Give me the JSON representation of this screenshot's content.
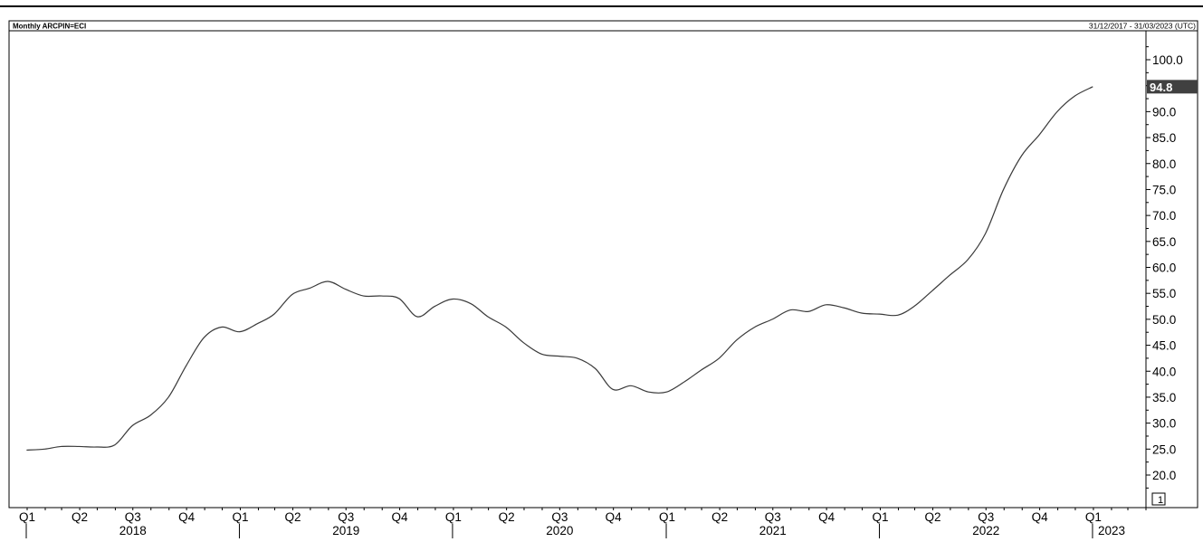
{
  "header": {
    "title": "Monthly ARCPIN=ECI",
    "date_range": "31/12/2017 - 31/03/2023 (UTC)"
  },
  "colors": {
    "line": "#3a3a3a",
    "axis": "#000000",
    "last_value_badge_bg": "#404040",
    "last_value_badge_text": "#ffffff"
  },
  "chart_data": {
    "type": "line",
    "title": "Monthly ARCPIN=ECI",
    "y_axis_position": "right",
    "ylim": [
      17.5,
      102.5
    ],
    "y_ticks": [
      20.0,
      25.0,
      30.0,
      35.0,
      40.0,
      45.0,
      50.0,
      55.0,
      60.0,
      65.0,
      70.0,
      75.0,
      80.0,
      85.0,
      90.0,
      95.0,
      100.0
    ],
    "y_tick_labels": [
      "20.0",
      "25.0",
      "30.0",
      "35.0",
      "40.0",
      "45.0",
      "50.0",
      "55.0",
      "60.0",
      "65.0",
      "70.0",
      "75.0",
      "80.0",
      "85.0",
      "90.0",
      "",
      "100.0"
    ],
    "last_value_label": "94.8",
    "scale_badge": "1",
    "grid": false,
    "x_ticks": [
      {
        "label": "Q1",
        "date": "2018-01-01"
      },
      {
        "label": "Q2",
        "date": "2018-04-01"
      },
      {
        "label": "Q3",
        "date": "2018-07-01"
      },
      {
        "label": "Q4",
        "date": "2018-10-01"
      },
      {
        "label": "Q1",
        "date": "2019-01-01"
      },
      {
        "label": "Q2",
        "date": "2019-04-01"
      },
      {
        "label": "Q3",
        "date": "2019-07-01"
      },
      {
        "label": "Q4",
        "date": "2019-10-01"
      },
      {
        "label": "Q1",
        "date": "2020-01-01"
      },
      {
        "label": "Q2",
        "date": "2020-04-01"
      },
      {
        "label": "Q3",
        "date": "2020-07-01"
      },
      {
        "label": "Q4",
        "date": "2020-10-01"
      },
      {
        "label": "Q1",
        "date": "2021-01-01"
      },
      {
        "label": "Q2",
        "date": "2021-04-01"
      },
      {
        "label": "Q3",
        "date": "2021-07-01"
      },
      {
        "label": "Q4",
        "date": "2021-10-01"
      },
      {
        "label": "Q1",
        "date": "2022-01-01"
      },
      {
        "label": "Q2",
        "date": "2022-04-01"
      },
      {
        "label": "Q3",
        "date": "2022-07-01"
      },
      {
        "label": "Q4",
        "date": "2022-10-01"
      },
      {
        "label": "Q1",
        "date": "2023-01-01"
      }
    ],
    "year_labels": [
      {
        "label": "2018",
        "date": "2018-07-01"
      },
      {
        "label": "2019",
        "date": "2019-07-01"
      },
      {
        "label": "2020",
        "date": "2020-07-01"
      },
      {
        "label": "2021",
        "date": "2021-07-01"
      },
      {
        "label": "2022",
        "date": "2022-07-01"
      },
      {
        "label": "2023",
        "date": "2023-01-01"
      }
    ],
    "year_boundaries": [
      "2018-01-01",
      "2019-01-01",
      "2020-01-01",
      "2021-01-01",
      "2022-01-01",
      "2023-01-01"
    ],
    "x_range": [
      "2017-12-01",
      "2023-04-01"
    ],
    "series": [
      {
        "x": [
          "2017-12-31",
          "2018-01-31",
          "2018-02-28",
          "2018-03-31",
          "2018-04-30",
          "2018-05-31",
          "2018-06-30",
          "2018-07-31",
          "2018-08-31",
          "2018-09-30",
          "2018-10-31",
          "2018-11-30",
          "2018-12-31",
          "2019-01-31",
          "2019-02-28",
          "2019-03-31",
          "2019-04-30",
          "2019-05-31",
          "2019-06-30",
          "2019-07-31",
          "2019-08-31",
          "2019-09-30",
          "2019-10-31",
          "2019-11-30",
          "2019-12-31",
          "2020-01-31",
          "2020-02-29",
          "2020-03-31",
          "2020-04-30",
          "2020-05-31",
          "2020-06-30",
          "2020-07-31",
          "2020-08-31",
          "2020-09-30",
          "2020-10-31",
          "2020-11-30",
          "2020-12-31",
          "2021-01-31",
          "2021-02-28",
          "2021-03-31",
          "2021-04-30",
          "2021-05-31",
          "2021-06-30",
          "2021-07-31",
          "2021-08-31",
          "2021-09-30",
          "2021-10-31",
          "2021-11-30",
          "2021-12-31",
          "2022-01-31",
          "2022-02-28",
          "2022-03-31",
          "2022-04-30",
          "2022-05-31",
          "2022-06-30",
          "2022-07-31",
          "2022-08-31",
          "2022-09-30",
          "2022-10-31",
          "2022-11-30",
          "2022-12-31"
        ],
        "y": [
          24.8,
          25.0,
          25.5,
          25.5,
          25.4,
          25.8,
          29.5,
          31.5,
          35.0,
          41.0,
          46.5,
          48.5,
          47.6,
          49.2,
          51.0,
          54.8,
          56.0,
          57.3,
          55.8,
          54.5,
          54.5,
          54.0,
          50.5,
          52.5,
          53.9,
          53.0,
          50.5,
          48.5,
          45.5,
          43.3,
          42.9,
          42.5,
          40.5,
          36.5,
          37.2,
          36.0,
          36.0,
          38.0,
          40.2,
          42.5,
          46.0,
          48.5,
          50.0,
          51.8,
          51.5,
          52.8,
          52.2,
          51.2,
          51.0,
          50.8,
          52.5,
          55.5,
          58.5,
          61.5,
          66.5,
          75.0,
          81.5,
          85.5,
          90.0,
          93.0,
          94.8
        ]
      }
    ]
  }
}
